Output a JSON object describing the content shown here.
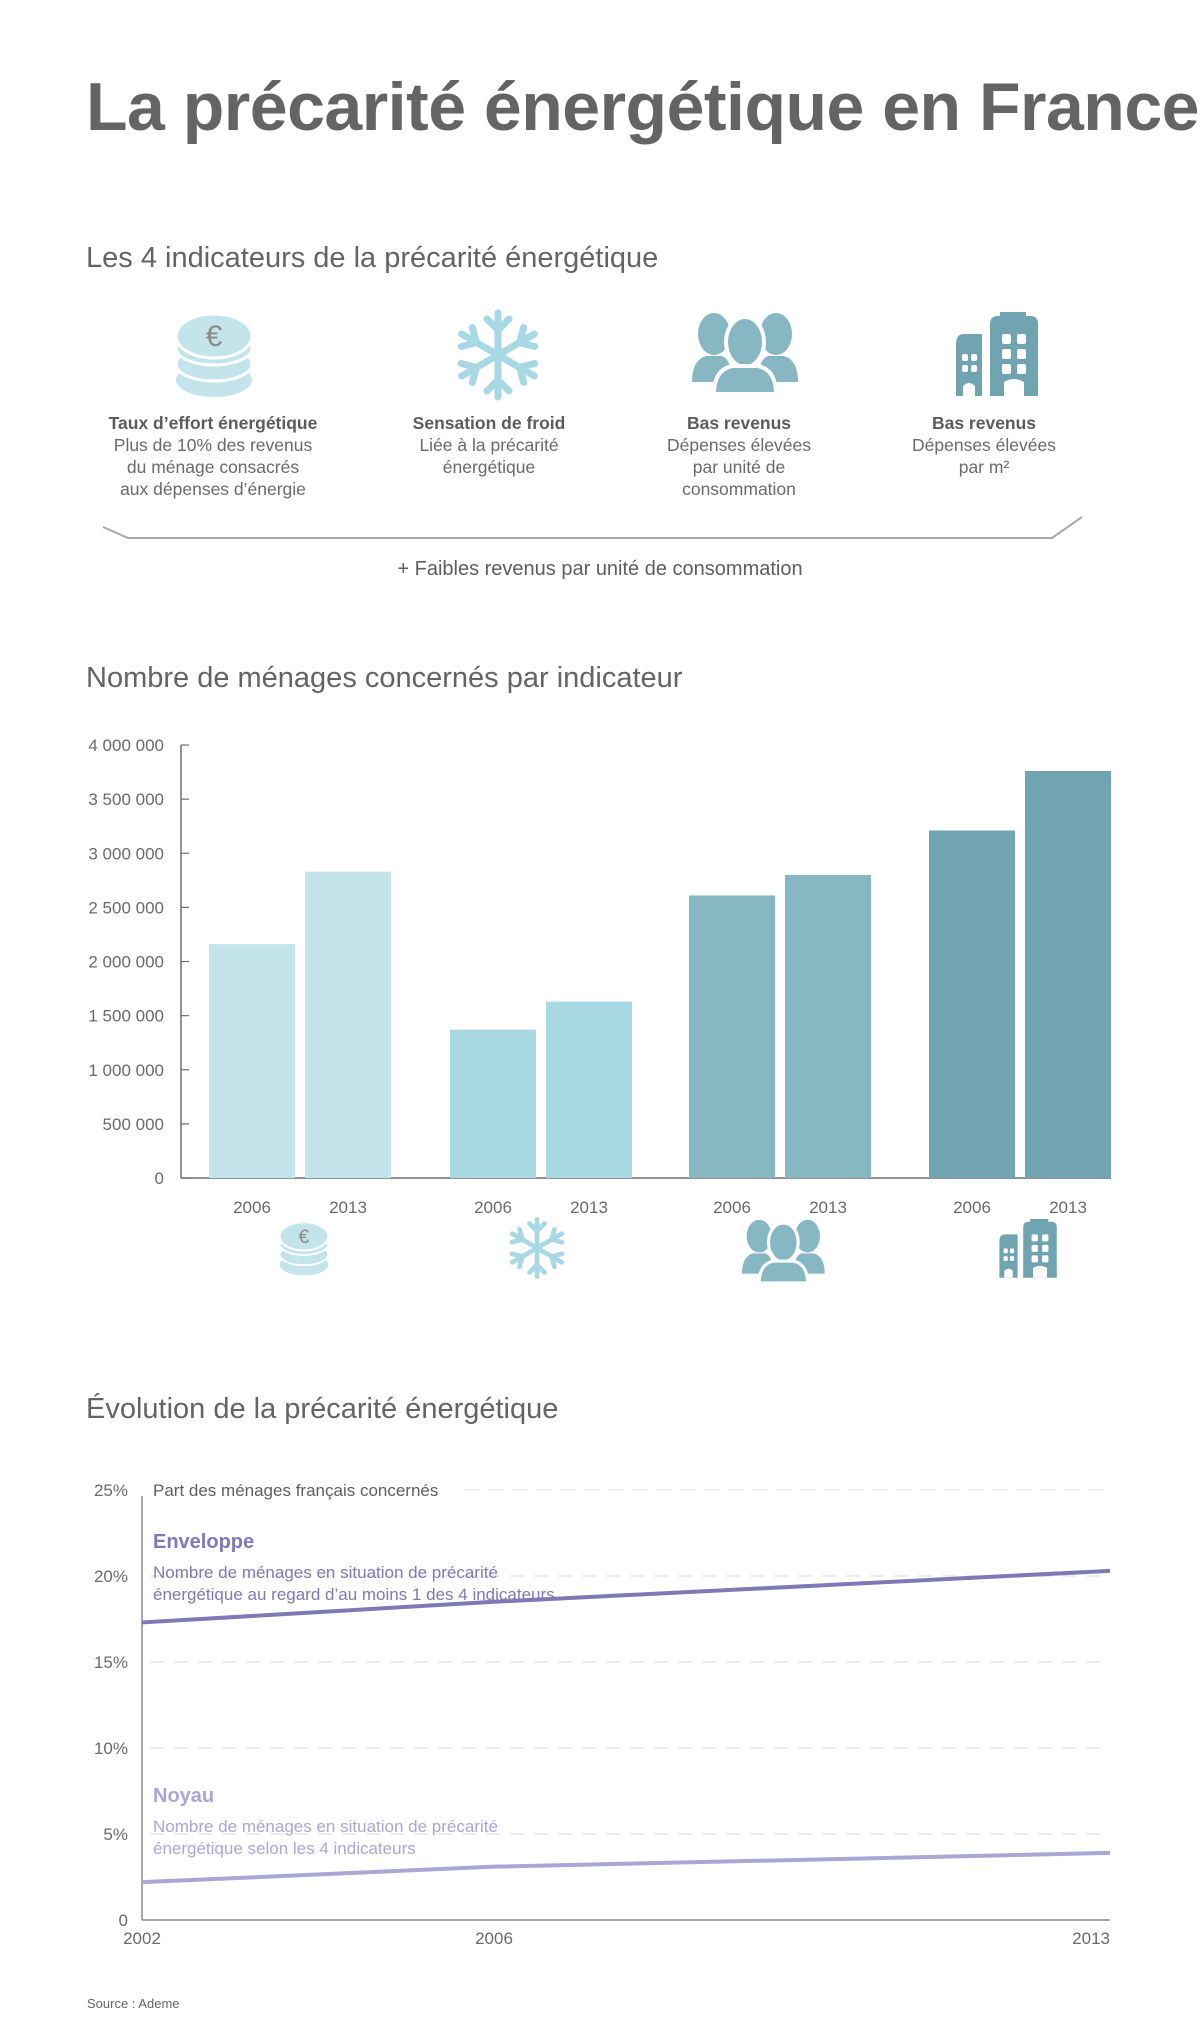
{
  "header": {
    "title": "La précarité énergétique en France"
  },
  "indicators_section": {
    "title": "Les 4 indicateurs de la précarité énergétique",
    "items": [
      {
        "icon": "euro-coins-icon",
        "title": "Taux d’effort énergétique",
        "lines": [
          "Plus de 10% des revenus",
          "du ménage consacrés",
          "aux dépenses d’énergie"
        ],
        "color": "#c2e4ea"
      },
      {
        "icon": "snowflake-icon",
        "title": "Sensation de froid",
        "lines": [
          "Liée à la précarité",
          "énergétique"
        ],
        "color": "#a7d8e3"
      },
      {
        "icon": "people-icon",
        "title": "Bas revenus",
        "lines": [
          "Dépenses élevées",
          "par unité de",
          "consommation"
        ],
        "color": "#87b7c2"
      },
      {
        "icon": "buildings-icon",
        "title": "Bas revenus",
        "lines": [
          "Dépenses élevées",
          "par m²"
        ],
        "color": "#71a4b1"
      }
    ],
    "note": "+ Faibles revenus par unité de consommation"
  },
  "chart_data": [
    {
      "type": "bar",
      "title": "Nombre de ménages concernés par indicateur",
      "xlabel": "",
      "ylabel": "",
      "ylim": [
        0,
        4000000
      ],
      "yticks": [
        0,
        500000,
        1000000,
        1500000,
        2000000,
        2500000,
        3000000,
        3500000,
        4000000
      ],
      "ytick_labels": [
        "0",
        "500 000",
        "1 000 000",
        "1 500 000",
        "2 000 000",
        "2 500 000",
        "3 000 000",
        "3 500 000",
        "4 000 000"
      ],
      "groups": [
        {
          "indicator": "Taux d’effort énergétique",
          "icon": "euro-coins-icon",
          "color": "#c2e4ea",
          "categories": [
            "2006",
            "2013"
          ],
          "values": [
            2160000,
            2830000
          ]
        },
        {
          "indicator": "Sensation de froid",
          "icon": "snowflake-icon",
          "color": "#a7d8e3",
          "categories": [
            "2006",
            "2013"
          ],
          "values": [
            1370000,
            1630000
          ]
        },
        {
          "indicator": "Bas revenus, dépenses élevées par unité de consommation",
          "icon": "people-icon",
          "color": "#87b7c2",
          "categories": [
            "2006",
            "2013"
          ],
          "values": [
            2610000,
            2800000
          ]
        },
        {
          "indicator": "Bas revenus, dépenses élevées par m²",
          "icon": "buildings-icon",
          "color": "#71a4b1",
          "categories": [
            "2006",
            "2013"
          ],
          "values": [
            3210000,
            3760000
          ]
        }
      ],
      "grid": false,
      "legend": "none"
    },
    {
      "type": "line",
      "title": "Évolution de la précarité énergétique",
      "ylabel": "Part des ménages français concernés",
      "x": [
        2002,
        2006,
        2013
      ],
      "xtick_labels": [
        "2002",
        "2006",
        "2013"
      ],
      "ylim": [
        0,
        25
      ],
      "yticks": [
        0,
        5,
        10,
        15,
        20,
        25
      ],
      "ytick_labels": [
        "0",
        "5%",
        "10%",
        "15%",
        "20%",
        "25%"
      ],
      "grid": true,
      "series": [
        {
          "name": "Enveloppe",
          "description": [
            "Nombre de ménages en situation de précarité",
            "énergétique au regard d’au moins 1 des 4 indicateurs"
          ],
          "values": [
            17.3,
            18.5,
            20.3
          ],
          "color": "#7f79b6"
        },
        {
          "name": "Noyau",
          "description": [
            "Nombre de ménages en situation de précarité",
            "énergétique selon les 4 indicateurs"
          ],
          "values": [
            2.2,
            3.1,
            3.9
          ],
          "color": "#aaa6d6"
        }
      ],
      "legend": "inline"
    }
  ],
  "footer": {
    "source": "Source : Ademe"
  }
}
